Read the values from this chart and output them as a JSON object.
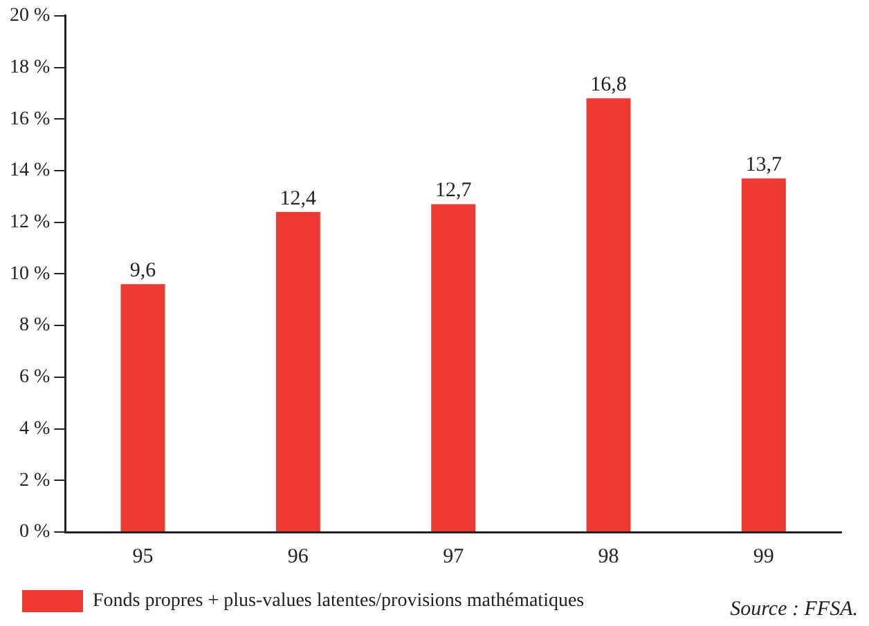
{
  "chart_data": {
    "type": "bar",
    "categories": [
      "95",
      "96",
      "97",
      "98",
      "99"
    ],
    "series": [
      {
        "name": "Fonds propres + plus-values latentes/provisions mathématiques",
        "color": "#ee3a33",
        "values": [
          9.6,
          12.4,
          12.7,
          16.8,
          13.7
        ],
        "value_labels": [
          "9,6",
          "12,4",
          "12,7",
          "16,8",
          "13,7"
        ]
      }
    ],
    "ylim": [
      0,
      20
    ],
    "yticks": [
      {
        "value": 0,
        "label": "0 %"
      },
      {
        "value": 2,
        "label": "2 %"
      },
      {
        "value": 4,
        "label": "4 %"
      },
      {
        "value": 6,
        "label": "6 %"
      },
      {
        "value": 8,
        "label": "8 %"
      },
      {
        "value": 10,
        "label": "10 %"
      },
      {
        "value": 12,
        "label": "12 %"
      },
      {
        "value": 14,
        "label": "14 %"
      },
      {
        "value": 16,
        "label": "16 %"
      },
      {
        "value": 18,
        "label": "18 %"
      },
      {
        "value": 20,
        "label": "20 %"
      }
    ],
    "grid": false,
    "legend": "bottom left",
    "annotations": [
      "Source : FFSA."
    ]
  }
}
